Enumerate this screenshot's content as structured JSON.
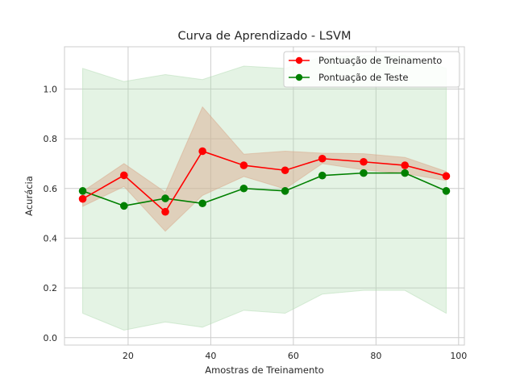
{
  "chart_data": {
    "type": "line",
    "title": "Curva de Aprendizado - LSVM",
    "xlabel": "Amostras de Treinamento",
    "ylabel": "Acurácia",
    "xlim": [
      4.6,
      101.4
    ],
    "ylim": [
      -0.03,
      1.17
    ],
    "xticks": [
      20,
      40,
      60,
      80,
      100
    ],
    "yticks": [
      0.0,
      0.2,
      0.4,
      0.6,
      0.8,
      1.0
    ],
    "xtick_labels": [
      "20",
      "40",
      "60",
      "80",
      "100"
    ],
    "ytick_labels": [
      "0.0",
      "0.2",
      "0.4",
      "0.6",
      "0.8",
      "1.0"
    ],
    "grid": true,
    "legend_position": "top-right",
    "x": [
      9,
      19,
      29,
      38,
      48,
      58,
      67,
      77,
      87,
      97
    ],
    "series": [
      {
        "name": "Pontuação de Treinamento",
        "color": "#ff0000",
        "band_color": "#d9a78a",
        "values": [
          0.558,
          0.653,
          0.506,
          0.75,
          0.693,
          0.673,
          0.72,
          0.707,
          0.693,
          0.65
        ],
        "band_lower": [
          0.528,
          0.608,
          0.428,
          0.572,
          0.648,
          0.598,
          0.7,
          0.675,
          0.66,
          0.632
        ],
        "band_upper": [
          0.588,
          0.7,
          0.585,
          0.928,
          0.738,
          0.75,
          0.742,
          0.74,
          0.725,
          0.668
        ]
      },
      {
        "name": "Pontuação de Teste",
        "color": "#008000",
        "band_color": "#b3dcb3",
        "values": [
          0.59,
          0.53,
          0.56,
          0.54,
          0.6,
          0.59,
          0.652,
          0.662,
          0.662,
          0.59
        ],
        "band_lower": [
          0.098,
          0.03,
          0.063,
          0.042,
          0.11,
          0.098,
          0.175,
          0.19,
          0.19,
          0.098
        ],
        "band_upper": [
          1.083,
          1.03,
          1.058,
          1.038,
          1.092,
          1.083,
          1.13,
          1.135,
          1.135,
          1.083
        ]
      }
    ]
  }
}
